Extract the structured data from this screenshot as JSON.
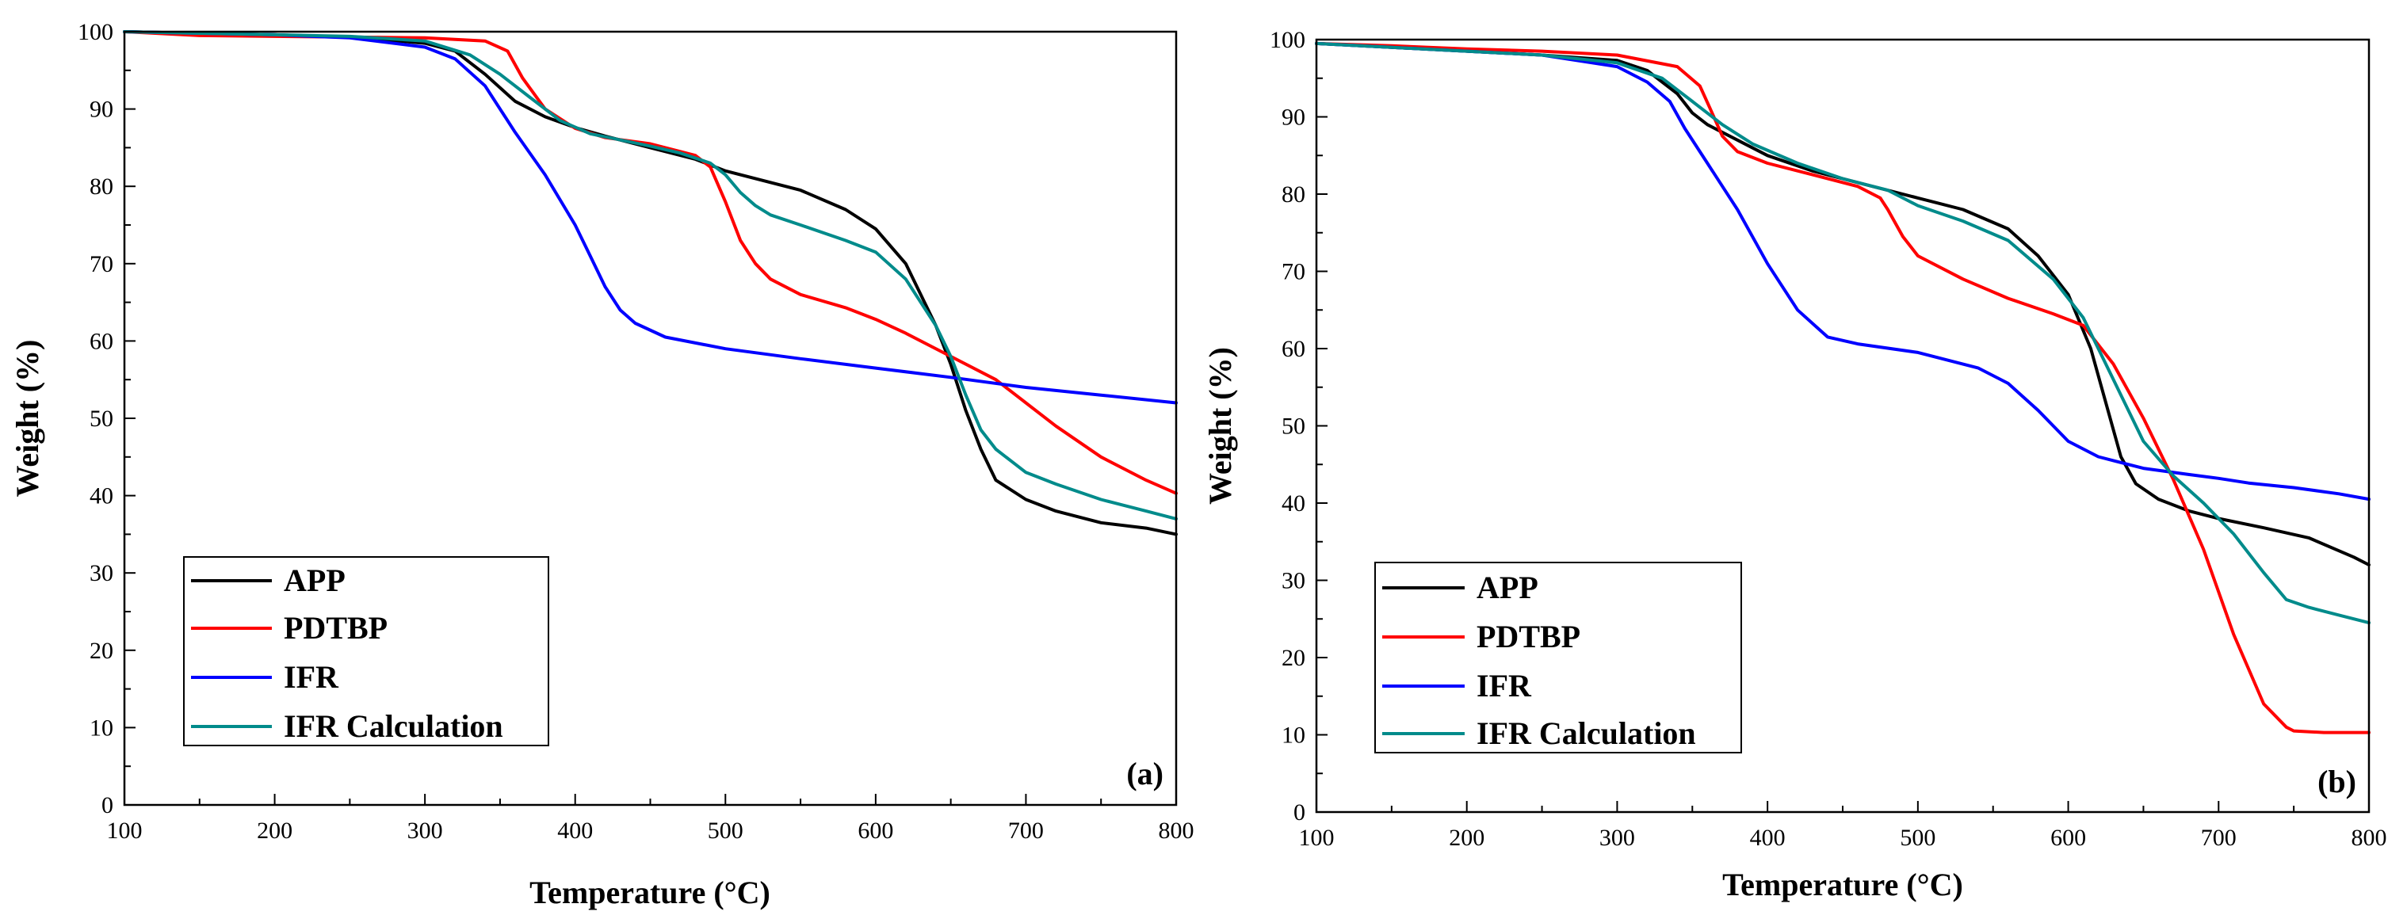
{
  "chart_data": [
    {
      "type": "line",
      "panel_label": "(a)",
      "xlabel": "Temperature (°C)",
      "ylabel": "Weight (%)",
      "xlim": [
        100,
        800
      ],
      "ylim": [
        0,
        100
      ],
      "xticks": [
        100,
        200,
        300,
        400,
        500,
        600,
        700,
        800
      ],
      "yticks": [
        0,
        10,
        20,
        30,
        40,
        50,
        60,
        70,
        80,
        90,
        100
      ],
      "legend_position": "bottom-left",
      "series": [
        {
          "name": "APP",
          "color": "#000000",
          "x": [
            100,
            150,
            200,
            250,
            300,
            320,
            340,
            360,
            380,
            400,
            420,
            450,
            480,
            500,
            520,
            550,
            580,
            600,
            620,
            640,
            650,
            660,
            670,
            680,
            700,
            720,
            750,
            780,
            800
          ],
          "y": [
            100,
            99.8,
            99.6,
            99.3,
            98.5,
            97.5,
            94.5,
            91,
            89,
            87.6,
            86.5,
            85,
            83.5,
            82,
            81,
            79.5,
            77,
            74.5,
            70,
            62,
            57,
            51,
            46,
            42,
            39.5,
            38,
            36.5,
            35.8,
            35
          ]
        },
        {
          "name": "PDTBP",
          "color": "#ff0000",
          "x": [
            100,
            150,
            200,
            250,
            300,
            340,
            355,
            365,
            380,
            400,
            420,
            450,
            480,
            490,
            500,
            510,
            520,
            530,
            550,
            580,
            600,
            620,
            650,
            680,
            700,
            720,
            750,
            780,
            800
          ],
          "y": [
            100,
            99.5,
            99.4,
            99.3,
            99.2,
            98.8,
            97.5,
            94,
            90,
            87.5,
            86.3,
            85.5,
            84,
            82.5,
            78,
            73,
            70,
            68,
            66,
            64.3,
            62.8,
            61,
            58,
            55,
            52,
            49,
            45,
            42,
            40.3
          ]
        },
        {
          "name": "IFR",
          "color": "#0000ff",
          "x": [
            100,
            150,
            200,
            250,
            300,
            320,
            340,
            360,
            380,
            400,
            410,
            420,
            430,
            440,
            460,
            500,
            550,
            600,
            650,
            700,
            750,
            800
          ],
          "y": [
            100,
            99.8,
            99.6,
            99.2,
            98,
            96.5,
            93,
            87,
            81.5,
            75,
            71,
            67,
            64,
            62.3,
            60.5,
            59,
            57.7,
            56.5,
            55.3,
            54,
            53,
            52
          ]
        },
        {
          "name": "IFR Calculation",
          "color": "#008b8b",
          "x": [
            100,
            150,
            200,
            250,
            300,
            330,
            350,
            370,
            390,
            410,
            430,
            450,
            470,
            490,
            500,
            510,
            520,
            530,
            550,
            580,
            600,
            620,
            640,
            650,
            660,
            670,
            680,
            690,
            700,
            720,
            750,
            780,
            800
          ],
          "y": [
            100,
            99.8,
            99.6,
            99.4,
            98.8,
            97,
            94.5,
            91.5,
            88.5,
            86.8,
            86,
            85.2,
            84.3,
            83,
            81.5,
            79.2,
            77.5,
            76.3,
            75,
            73,
            71.5,
            68,
            62,
            58,
            53,
            48.5,
            46,
            44.5,
            43,
            41.5,
            39.5,
            38,
            37
          ]
        }
      ],
      "legend": [
        "APP",
        "PDTBP",
        "IFR",
        "IFR Calculation"
      ]
    },
    {
      "type": "line",
      "panel_label": "(b)",
      "xlabel": "Temperature (°C)",
      "ylabel": "Weight (%)",
      "xlim": [
        100,
        800
      ],
      "ylim": [
        0,
        100
      ],
      "xticks": [
        100,
        200,
        300,
        400,
        500,
        600,
        700,
        800
      ],
      "yticks": [
        0,
        10,
        20,
        30,
        40,
        50,
        60,
        70,
        80,
        90,
        100
      ],
      "legend_position": "bottom-left",
      "series": [
        {
          "name": "APP",
          "color": "#000000",
          "x": [
            100,
            150,
            200,
            250,
            300,
            320,
            340,
            350,
            360,
            380,
            400,
            430,
            460,
            500,
            530,
            560,
            580,
            600,
            615,
            625,
            635,
            645,
            660,
            680,
            700,
            730,
            760,
            790,
            800
          ],
          "y": [
            99.5,
            99,
            98.5,
            98,
            97.3,
            96,
            93,
            90.5,
            89,
            87,
            85,
            83,
            81.5,
            79.5,
            78,
            75.5,
            72,
            67,
            60,
            53,
            46,
            42.5,
            40.5,
            39,
            38,
            36.8,
            35.5,
            33,
            32
          ]
        },
        {
          "name": "PDTBP",
          "color": "#ff0000",
          "x": [
            100,
            150,
            200,
            250,
            300,
            340,
            355,
            362,
            370,
            380,
            400,
            430,
            460,
            475,
            480,
            490,
            500,
            530,
            560,
            590,
            610,
            630,
            650,
            670,
            690,
            710,
            730,
            745,
            750,
            770,
            800
          ],
          "y": [
            99.5,
            99.2,
            98.8,
            98.5,
            98,
            96.5,
            94,
            91,
            87.5,
            85.5,
            84,
            82.5,
            81,
            79.5,
            78,
            74.5,
            72,
            69,
            66.5,
            64.5,
            63,
            58,
            51,
            43,
            34,
            23,
            14,
            11,
            10.5,
            10.3,
            10.3
          ]
        },
        {
          "name": "IFR",
          "color": "#0000ff",
          "x": [
            100,
            150,
            200,
            250,
            300,
            320,
            335,
            345,
            360,
            380,
            400,
            420,
            440,
            460,
            500,
            540,
            560,
            580,
            600,
            620,
            650,
            680,
            700,
            720,
            750,
            780,
            800
          ],
          "y": [
            99.5,
            99,
            98.5,
            98,
            96.5,
            94.5,
            92,
            88.5,
            84,
            78,
            71,
            65,
            61.5,
            60.6,
            59.5,
            57.5,
            55.5,
            52,
            48,
            46,
            44.5,
            43.7,
            43.2,
            42.6,
            42,
            41.2,
            40.5
          ]
        },
        {
          "name": "IFR Calculation",
          "color": "#008b8b",
          "x": [
            100,
            150,
            200,
            250,
            300,
            330,
            350,
            370,
            390,
            420,
            450,
            480,
            500,
            530,
            560,
            590,
            610,
            630,
            650,
            670,
            690,
            710,
            730,
            745,
            760,
            780,
            800
          ],
          "y": [
            99.5,
            99,
            98.5,
            98,
            97,
            95,
            92,
            89,
            86.5,
            84,
            82,
            80.5,
            78.5,
            76.5,
            74,
            69,
            64,
            56,
            48,
            43.5,
            40,
            36,
            31,
            27.5,
            26.5,
            25.5,
            24.5
          ]
        }
      ],
      "legend": [
        "APP",
        "PDTBP",
        "IFR",
        "IFR Calculation"
      ]
    }
  ]
}
